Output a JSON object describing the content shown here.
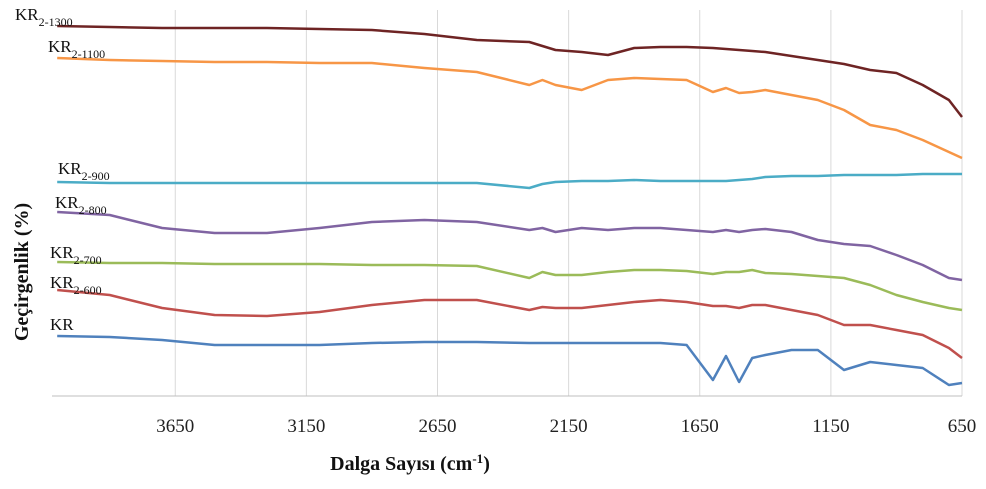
{
  "chart_data": {
    "type": "line",
    "xlabel": "Dalga Sayısı (cm-1)",
    "ylabel": "Geçirgenlik (%)",
    "x": [
      4100,
      3900,
      3700,
      3500,
      3300,
      3100,
      2900,
      2700,
      2500,
      2300,
      2250,
      2200,
      2100,
      2000,
      1900,
      1800,
      1700,
      1600,
      1550,
      1500,
      1450,
      1400,
      1300,
      1200,
      1100,
      1000,
      900,
      800,
      700,
      650
    ],
    "xlim": [
      4120,
      650
    ],
    "ylim": [
      0,
      386
    ],
    "xticks": [
      3650,
      3150,
      2650,
      2150,
      1650,
      1150,
      650
    ],
    "grid": true,
    "series": [
      {
        "name": "KR2-1300",
        "color": "#6e2424",
        "values": [
          370,
          369,
          368,
          368,
          368,
          367,
          366,
          362,
          356,
          354,
          350,
          346,
          344,
          341,
          348,
          349,
          349,
          348,
          347,
          346,
          345,
          344,
          340,
          336,
          332,
          326,
          323,
          311,
          296,
          279
        ]
      },
      {
        "name": "KR2-1100",
        "color": "#f79646",
        "values": [
          338,
          336,
          335,
          334,
          334,
          333,
          333,
          328,
          324,
          311,
          316,
          311,
          306,
          316,
          318,
          317,
          316,
          304,
          308,
          303,
          304,
          306,
          301,
          296,
          286,
          271,
          266,
          256,
          244,
          238
        ]
      },
      {
        "name": "KR2-900",
        "color": "#4bacc6",
        "values": [
          214,
          213,
          213,
          213,
          213,
          213,
          213,
          213,
          213,
          208,
          212,
          214,
          215,
          215,
          216,
          215,
          215,
          215,
          215,
          216,
          217,
          219,
          220,
          220,
          221,
          221,
          221,
          222,
          222,
          222
        ]
      },
      {
        "name": "KR2-800",
        "color": "#8064a2",
        "values": [
          184,
          181,
          168,
          163,
          163,
          168,
          174,
          176,
          174,
          166,
          168,
          164,
          168,
          166,
          168,
          168,
          166,
          164,
          166,
          164,
          166,
          167,
          164,
          156,
          152,
          150,
          141,
          131,
          118,
          116
        ]
      },
      {
        "name": "KR2-700",
        "color": "#9bbb59",
        "values": [
          134,
          133,
          133,
          132,
          132,
          132,
          131,
          131,
          130,
          118,
          124,
          121,
          121,
          124,
          126,
          126,
          125,
          122,
          124,
          124,
          126,
          123,
          122,
          120,
          118,
          111,
          101,
          94,
          88,
          86
        ]
      },
      {
        "name": "KR2-600",
        "color": "#c0504d",
        "values": [
          106,
          101,
          88,
          81,
          80,
          84,
          91,
          96,
          96,
          86,
          89,
          88,
          88,
          91,
          94,
          96,
          94,
          90,
          90,
          88,
          91,
          91,
          86,
          81,
          71,
          71,
          66,
          61,
          48,
          38
        ]
      },
      {
        "name": "KR",
        "color": "#4f81bd",
        "values": [
          60,
          59,
          56,
          51,
          51,
          51,
          53,
          54,
          54,
          53,
          53,
          53,
          53,
          53,
          53,
          53,
          51,
          16,
          40,
          14,
          38,
          41,
          46,
          46,
          26,
          34,
          31,
          28,
          11,
          13
        ]
      }
    ]
  }
}
